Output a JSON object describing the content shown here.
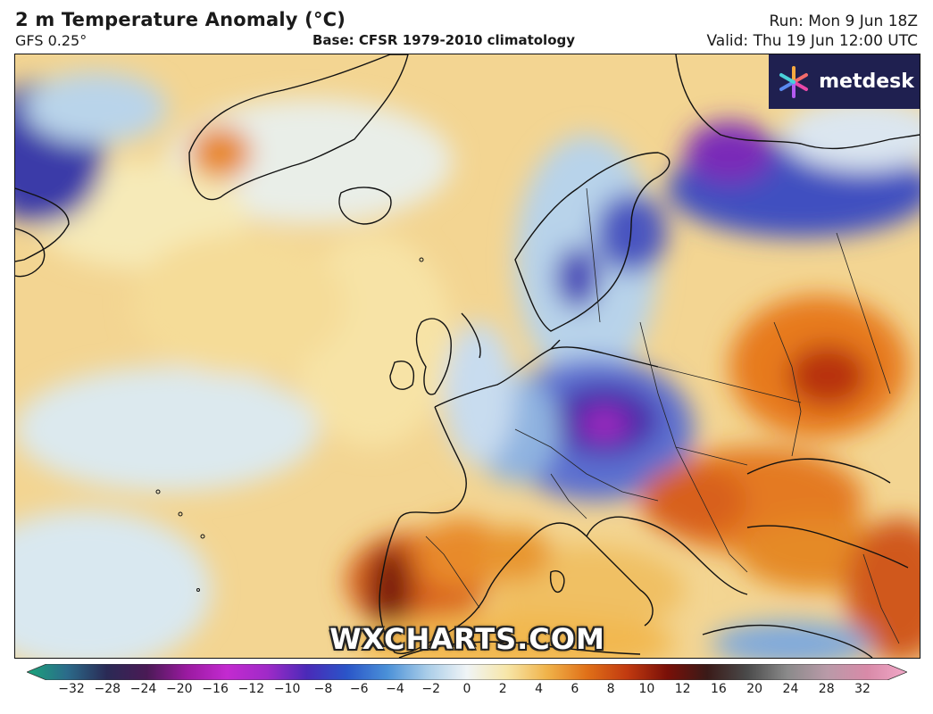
{
  "header": {
    "title": "2 m Temperature Anomaly (°C)",
    "model": "GFS 0.25°",
    "base": "Base: CFSR 1979-2010 climatology",
    "run": "Run: Mon 9 Jun 18Z",
    "valid": "Valid: Thu 19 Jun 12:00 UTC"
  },
  "logo": {
    "text": "metdesk",
    "icon": "metdesk-star-icon"
  },
  "watermark": "WXCHARTS.COM",
  "colorbar": {
    "ticks": [
      "−32",
      "−28",
      "−24",
      "−20",
      "−16",
      "−12",
      "−10",
      "−8",
      "−6",
      "−4",
      "−2",
      "0",
      "2",
      "4",
      "6",
      "8",
      "10",
      "12",
      "16",
      "20",
      "24",
      "28",
      "32"
    ],
    "colors": [
      "#1aa57a",
      "#2b6b8a",
      "#2a2a55",
      "#4a1a55",
      "#9a1aa0",
      "#c32ad0",
      "#a02ac8",
      "#4a2ab8",
      "#2a55c8",
      "#4a90d8",
      "#a9cde8",
      "#f0f4f6",
      "#f7e6a8",
      "#f0b34a",
      "#e07018",
      "#c23a10",
      "#7a1008",
      "#3a1a18",
      "#4a4a4a",
      "#8a8a8a",
      "#b99aa8",
      "#d88aa8",
      "#f2a8c8"
    ]
  }
}
